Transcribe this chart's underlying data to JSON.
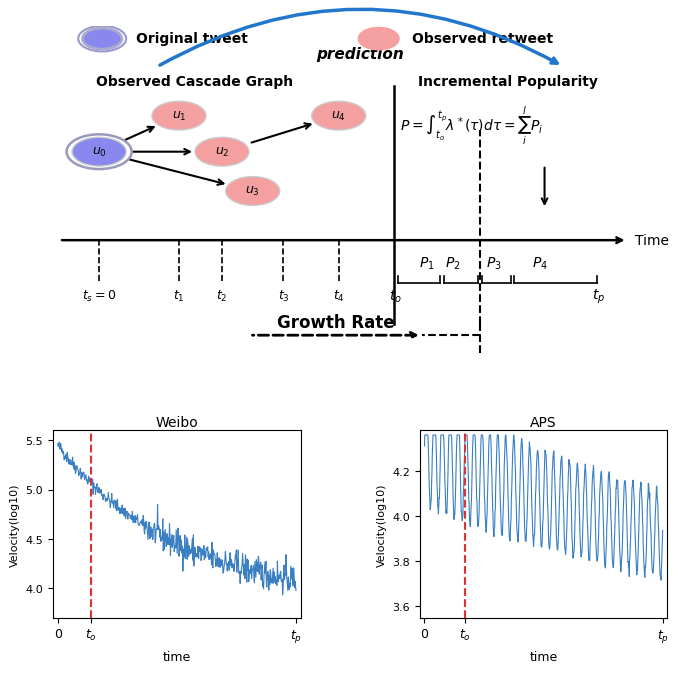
{
  "bg_color": "#ffffff",
  "node_u0_color": "#8888ee",
  "node_u0_ec": "#aaaacc",
  "node_pink_color": "#f4a0a0",
  "node_pink_ec": "#f4a0a0",
  "line_color": "#3a7fc1",
  "vline_color": "#e03030",
  "arrow_color": "#2277cc",
  "weibo_title": "Weibo",
  "aps_title": "APS",
  "ylabel": "Velocity(log10)",
  "xlabel": "time",
  "weibo_ylim": [
    3.7,
    5.6
  ],
  "aps_ylim": [
    3.55,
    4.38
  ],
  "weibo_yticks": [
    4.0,
    4.5,
    5.0,
    5.5
  ],
  "aps_yticks": [
    3.6,
    3.8,
    4.0,
    4.2
  ],
  "cascade_title": "Observed Cascade Graph",
  "popularity_title": "Incremental Popularity",
  "growth_rate_label": "Growth Rate",
  "prediction_label": "prediction"
}
